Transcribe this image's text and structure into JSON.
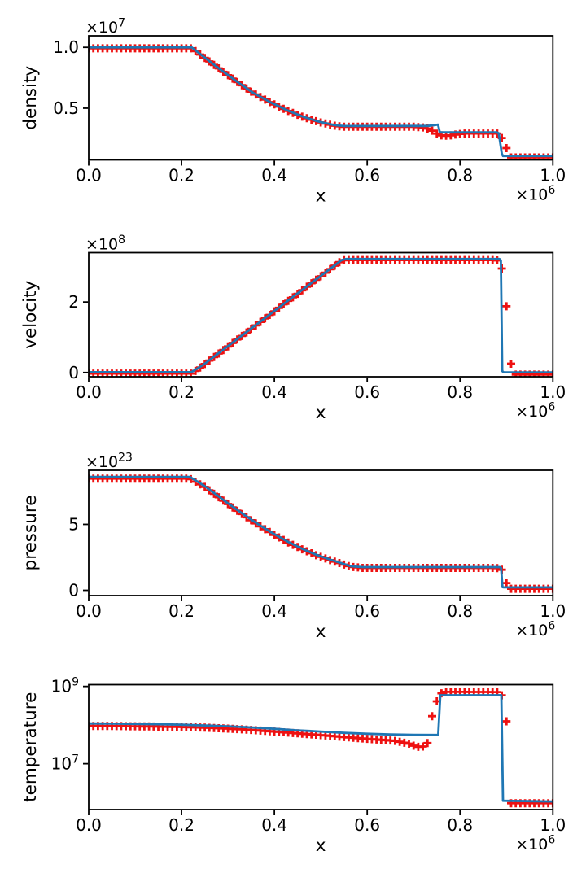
{
  "chart_data": {
    "type": "line",
    "description": "Shock tube test: four vertically stacked subplots of density, velocity, pressure, temperature versus x. Blue solid line (reference solution) with red plus markers (simulation samples).",
    "x_axis": {
      "label": "x",
      "lim": [
        0.0,
        1.0
      ],
      "unit_multiplier": "1e6",
      "offset_base": "×10",
      "offset_exp": "6",
      "ticks": [
        {
          "value": 0.0,
          "label": "0.0"
        },
        {
          "value": 0.2,
          "label": "0.2"
        },
        {
          "value": 0.4,
          "label": "0.4"
        },
        {
          "value": 0.6,
          "label": "0.6"
        },
        {
          "value": 0.8,
          "label": "0.8"
        },
        {
          "value": 1.0,
          "label": "1.0"
        }
      ]
    },
    "style": {
      "line_color": "#1f77b4",
      "line_width": 2.8,
      "marker_color": "#ee1111",
      "marker_symbol": "+",
      "marker_arm": 5.0,
      "marker_stroke": 2.8,
      "marker_step_x": 0.01,
      "spine_color": "#000000",
      "background": "#ffffff"
    },
    "subplots": [
      {
        "ylabel": "density",
        "scale": "linear",
        "unit_multiplier": "1e7",
        "offset_base": "×10",
        "offset_exp": "7",
        "ylim": [
          0.075,
          1.095
        ],
        "yticks": [
          {
            "value": 0.5,
            "label": "0.5"
          },
          {
            "value": 1.0,
            "label": "1.0"
          }
        ],
        "line": [
          [
            0,
            1.0
          ],
          [
            0.222,
            1.0
          ],
          [
            0.25,
            0.915
          ],
          [
            0.285,
            0.815
          ],
          [
            0.32,
            0.717
          ],
          [
            0.355,
            0.625
          ],
          [
            0.39,
            0.552
          ],
          [
            0.425,
            0.487
          ],
          [
            0.46,
            0.432
          ],
          [
            0.495,
            0.39
          ],
          [
            0.53,
            0.36
          ],
          [
            0.55,
            0.353
          ],
          [
            0.73,
            0.354
          ],
          [
            0.746,
            0.361
          ],
          [
            0.7525,
            0.3655
          ],
          [
            0.7565,
            0.301
          ],
          [
            0.8795,
            0.301
          ],
          [
            0.8835,
            0.293
          ],
          [
            0.89,
            0.125
          ],
          [
            0.8925,
            0.107
          ],
          [
            1.0,
            0.107
          ]
        ],
        "markers_curve": [
          [
            0,
            0.992
          ],
          [
            0.222,
            0.992
          ],
          [
            0.25,
            0.913
          ],
          [
            0.285,
            0.813
          ],
          [
            0.32,
            0.715
          ],
          [
            0.355,
            0.623
          ],
          [
            0.39,
            0.55
          ],
          [
            0.425,
            0.485
          ],
          [
            0.46,
            0.43
          ],
          [
            0.495,
            0.387
          ],
          [
            0.53,
            0.356
          ],
          [
            0.55,
            0.347
          ],
          [
            0.7,
            0.347
          ],
          [
            0.72,
            0.342
          ],
          [
            0.735,
            0.328
          ],
          [
            0.745,
            0.302
          ],
          [
            0.755,
            0.28
          ],
          [
            0.765,
            0.272
          ],
          [
            0.78,
            0.276
          ],
          [
            0.795,
            0.287
          ],
          [
            0.81,
            0.292
          ],
          [
            0.88,
            0.292
          ],
          [
            0.885,
            0.29
          ],
          [
            0.89,
            0.255
          ],
          [
            0.9,
            0.172
          ],
          [
            0.908,
            0.095
          ],
          [
            1.0,
            0.095
          ]
        ]
      },
      {
        "ylabel": "velocity",
        "scale": "linear",
        "unit_multiplier": "1e8",
        "offset_base": "×10",
        "offset_exp": "8",
        "ylim": [
          -0.12,
          3.4
        ],
        "yticks": [
          {
            "value": 0,
            "label": "0"
          },
          {
            "value": 2,
            "label": "2"
          }
        ],
        "line": [
          [
            0,
            0.01
          ],
          [
            0.221,
            0.01
          ],
          [
            0.245,
            0.2
          ],
          [
            0.545,
            3.19
          ],
          [
            0.555,
            3.22
          ],
          [
            0.885,
            3.22
          ],
          [
            0.888,
            3.18
          ],
          [
            0.891,
            0.04
          ],
          [
            0.894,
            0.005
          ],
          [
            1.0,
            0.005
          ]
        ],
        "markers_curve": [
          [
            0,
            -0.03
          ],
          [
            0.222,
            -0.03
          ],
          [
            0.235,
            0.09
          ],
          [
            0.545,
            3.18
          ],
          [
            0.555,
            3.19
          ],
          [
            0.875,
            3.19
          ],
          [
            0.885,
            3.17
          ],
          [
            0.89,
            2.95
          ],
          [
            0.9,
            1.88
          ],
          [
            0.91,
            0.25
          ],
          [
            0.918,
            -0.06
          ],
          [
            1.0,
            -0.06
          ]
        ]
      },
      {
        "ylabel": "pressure",
        "scale": "linear",
        "unit_multiplier": "1e23",
        "offset_base": "×10",
        "offset_exp": "23",
        "ylim": [
          -0.4,
          9.1
        ],
        "yticks": [
          {
            "value": 0,
            "label": "0"
          },
          {
            "value": 5,
            "label": "5"
          }
        ],
        "line": [
          [
            0,
            8.6
          ],
          [
            0.218,
            8.6
          ],
          [
            0.25,
            7.9
          ],
          [
            0.28,
            7.12
          ],
          [
            0.31,
            6.34
          ],
          [
            0.34,
            5.6
          ],
          [
            0.37,
            4.9
          ],
          [
            0.4,
            4.26
          ],
          [
            0.43,
            3.67
          ],
          [
            0.46,
            3.15
          ],
          [
            0.49,
            2.7
          ],
          [
            0.52,
            2.33
          ],
          [
            0.545,
            2.05
          ],
          [
            0.565,
            1.82
          ],
          [
            0.59,
            1.76
          ],
          [
            0.886,
            1.76
          ],
          [
            0.8885,
            1.7
          ],
          [
            0.8915,
            0.24
          ],
          [
            0.894,
            0.22
          ],
          [
            1.0,
            0.22
          ]
        ],
        "markers_curve": [
          [
            0,
            8.47
          ],
          [
            0.218,
            8.47
          ],
          [
            0.25,
            7.84
          ],
          [
            0.28,
            7.06
          ],
          [
            0.31,
            6.28
          ],
          [
            0.34,
            5.54
          ],
          [
            0.37,
            4.85
          ],
          [
            0.4,
            4.21
          ],
          [
            0.43,
            3.62
          ],
          [
            0.46,
            3.11
          ],
          [
            0.49,
            2.66
          ],
          [
            0.52,
            2.29
          ],
          [
            0.545,
            2.01
          ],
          [
            0.565,
            1.78
          ],
          [
            0.59,
            1.7
          ],
          [
            0.87,
            1.7
          ],
          [
            0.885,
            1.68
          ],
          [
            0.8905,
            1.55
          ],
          [
            0.8975,
            0.86
          ],
          [
            0.9035,
            0.12
          ],
          [
            1.0,
            0.12
          ]
        ]
      },
      {
        "ylabel": "temperature",
        "scale": "log",
        "unit_multiplier": "1",
        "offset_base": "",
        "offset_exp": "",
        "ylim": [
          650000,
          1110000000
        ],
        "yticks": [
          {
            "value": 10000000,
            "label_base": "10",
            "label_exp": "7"
          },
          {
            "value": 1000000000,
            "label_base": "10",
            "label_exp": "9"
          }
        ],
        "line": [
          [
            0,
            110000000
          ],
          [
            0.05,
            109000000
          ],
          [
            0.1,
            107000000
          ],
          [
            0.15,
            105000000
          ],
          [
            0.2,
            102000000
          ],
          [
            0.25,
            98000000
          ],
          [
            0.3,
            93000000
          ],
          [
            0.35,
            87000000
          ],
          [
            0.4,
            80000000
          ],
          [
            0.45,
            73000000
          ],
          [
            0.5,
            68000000
          ],
          [
            0.55,
            63000000
          ],
          [
            0.6,
            59500000
          ],
          [
            0.65,
            57000000
          ],
          [
            0.7,
            56000000
          ],
          [
            0.753,
            55500000
          ],
          [
            0.7575,
            590000000
          ],
          [
            0.889,
            590000000
          ],
          [
            0.8925,
            1100000
          ],
          [
            1.0,
            1050000
          ]
        ],
        "markers_curve": [
          [
            0,
            95000000
          ],
          [
            0.05,
            94500000
          ],
          [
            0.1,
            93000000
          ],
          [
            0.15,
            91500000
          ],
          [
            0.2,
            89000000
          ],
          [
            0.25,
            86000000
          ],
          [
            0.3,
            81000000
          ],
          [
            0.35,
            75000000
          ],
          [
            0.4,
            68000000
          ],
          [
            0.45,
            61000000
          ],
          [
            0.5,
            55000000
          ],
          [
            0.55,
            49000000
          ],
          [
            0.6,
            44000000
          ],
          [
            0.63,
            41500000
          ],
          [
            0.66,
            39000000
          ],
          [
            0.69,
            33000000
          ],
          [
            0.705,
            27500000
          ],
          [
            0.718,
            27000000
          ],
          [
            0.727,
            31000000
          ],
          [
            0.735,
            40000000
          ],
          [
            0.74,
            170000000
          ],
          [
            0.75,
            410000000
          ],
          [
            0.757,
            630000000
          ],
          [
            0.765,
            720000000
          ],
          [
            0.8,
            720000000
          ],
          [
            0.88,
            715000000
          ],
          [
            0.887,
            700000000
          ],
          [
            0.8905,
            570000000
          ],
          [
            0.9,
            125000000
          ],
          [
            0.908,
            950000
          ],
          [
            1.0,
            950000
          ]
        ]
      }
    ]
  }
}
